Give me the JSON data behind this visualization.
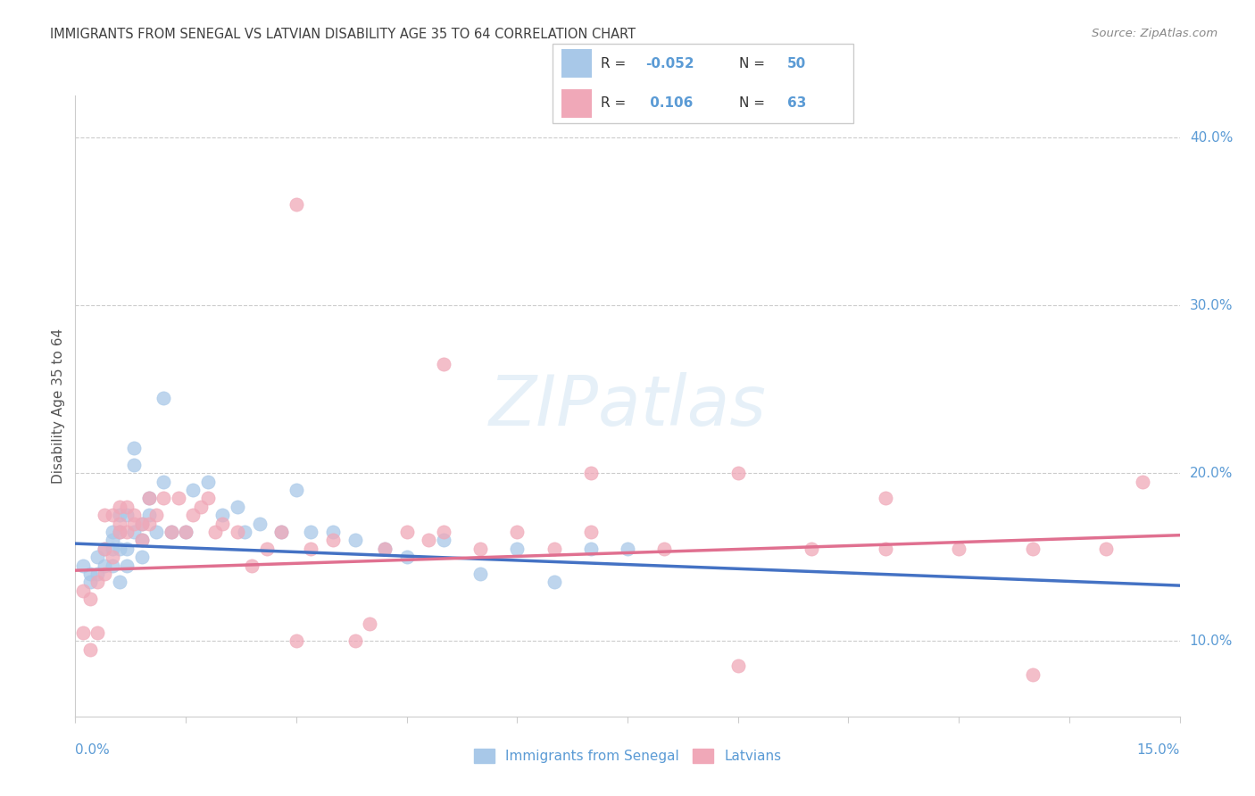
{
  "title": "IMMIGRANTS FROM SENEGAL VS LATVIAN DISABILITY AGE 35 TO 64 CORRELATION CHART",
  "source": "Source: ZipAtlas.com",
  "ylabel": "Disability Age 35 to 64",
  "right_yticks": [
    "10.0%",
    "20.0%",
    "30.0%",
    "40.0%"
  ],
  "right_ytick_vals": [
    0.1,
    0.2,
    0.3,
    0.4
  ],
  "xmin": 0.0,
  "xmax": 0.15,
  "ymin": 0.055,
  "ymax": 0.425,
  "color_blue": "#A8C8E8",
  "color_pink": "#F0A8B8",
  "color_blue_line": "#4472C4",
  "color_pink_line": "#E07090",
  "color_axis_label": "#5B9BD5",
  "color_title": "#404040",
  "color_legend_text_dark": "#333333",
  "color_legend_val": "#5B9BD5",
  "blue_scatter_x": [
    0.001,
    0.002,
    0.002,
    0.003,
    0.003,
    0.004,
    0.004,
    0.005,
    0.005,
    0.005,
    0.005,
    0.006,
    0.006,
    0.006,
    0.006,
    0.007,
    0.007,
    0.007,
    0.008,
    0.008,
    0.008,
    0.009,
    0.009,
    0.009,
    0.01,
    0.01,
    0.011,
    0.012,
    0.012,
    0.013,
    0.015,
    0.016,
    0.018,
    0.02,
    0.022,
    0.023,
    0.025,
    0.028,
    0.03,
    0.032,
    0.035,
    0.038,
    0.042,
    0.045,
    0.05,
    0.055,
    0.06,
    0.065,
    0.07,
    0.075
  ],
  "blue_scatter_y": [
    0.145,
    0.135,
    0.14,
    0.15,
    0.14,
    0.155,
    0.145,
    0.16,
    0.145,
    0.155,
    0.165,
    0.135,
    0.155,
    0.165,
    0.175,
    0.145,
    0.155,
    0.175,
    0.205,
    0.215,
    0.165,
    0.16,
    0.15,
    0.17,
    0.175,
    0.185,
    0.165,
    0.245,
    0.195,
    0.165,
    0.165,
    0.19,
    0.195,
    0.175,
    0.18,
    0.165,
    0.17,
    0.165,
    0.19,
    0.165,
    0.165,
    0.16,
    0.155,
    0.15,
    0.16,
    0.14,
    0.155,
    0.135,
    0.155,
    0.155
  ],
  "pink_scatter_x": [
    0.001,
    0.001,
    0.002,
    0.002,
    0.003,
    0.003,
    0.004,
    0.004,
    0.004,
    0.005,
    0.005,
    0.006,
    0.006,
    0.006,
    0.007,
    0.007,
    0.008,
    0.008,
    0.009,
    0.009,
    0.01,
    0.01,
    0.011,
    0.012,
    0.013,
    0.014,
    0.015,
    0.016,
    0.017,
    0.018,
    0.019,
    0.02,
    0.022,
    0.024,
    0.026,
    0.028,
    0.03,
    0.032,
    0.035,
    0.038,
    0.04,
    0.042,
    0.045,
    0.048,
    0.05,
    0.055,
    0.06,
    0.065,
    0.07,
    0.08,
    0.09,
    0.1,
    0.11,
    0.12,
    0.13,
    0.14,
    0.03,
    0.05,
    0.07,
    0.09,
    0.11,
    0.13,
    0.145
  ],
  "pink_scatter_y": [
    0.13,
    0.105,
    0.125,
    0.095,
    0.105,
    0.135,
    0.14,
    0.155,
    0.175,
    0.15,
    0.175,
    0.17,
    0.18,
    0.165,
    0.165,
    0.18,
    0.17,
    0.175,
    0.16,
    0.17,
    0.185,
    0.17,
    0.175,
    0.185,
    0.165,
    0.185,
    0.165,
    0.175,
    0.18,
    0.185,
    0.165,
    0.17,
    0.165,
    0.145,
    0.155,
    0.165,
    0.1,
    0.155,
    0.16,
    0.1,
    0.11,
    0.155,
    0.165,
    0.16,
    0.165,
    0.155,
    0.165,
    0.155,
    0.165,
    0.155,
    0.085,
    0.155,
    0.155,
    0.155,
    0.155,
    0.155,
    0.36,
    0.265,
    0.2,
    0.2,
    0.185,
    0.08,
    0.195
  ],
  "blue_trend_x0": 0.0,
  "blue_trend_x1": 0.15,
  "blue_trend_y0": 0.158,
  "blue_trend_y1": 0.133,
  "pink_trend_x0": 0.0,
  "pink_trend_x1": 0.15,
  "pink_trend_y0": 0.142,
  "pink_trend_y1": 0.163
}
